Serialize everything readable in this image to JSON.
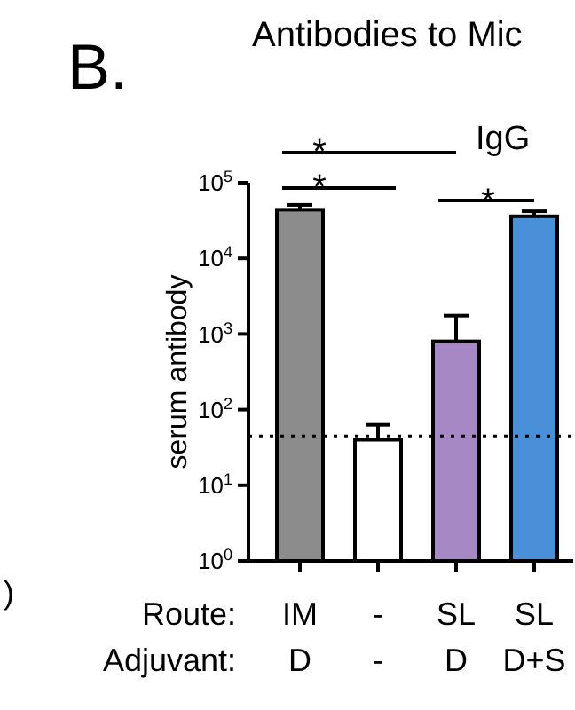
{
  "chart_data": {
    "type": "bar",
    "title": "Antibodies to Mic",
    "subtitle": "IgG",
    "ylabel": "serum antibody",
    "categories": [
      "IM\nD",
      "-\n-",
      "SL\nD",
      "SL\nD+S"
    ],
    "values": [
      44000,
      40,
      800,
      36000
    ],
    "errors": [
      [
        44000,
        51000
      ],
      [
        40,
        63
      ],
      [
        800,
        1750
      ],
      [
        36000,
        42000
      ]
    ],
    "colors": [
      "#8c8c8c",
      "#ffffff",
      "#a688c4",
      "#4a90d9"
    ],
    "log": true,
    "ylim": [
      1,
      100000
    ],
    "yticks": [
      {
        "value": 1,
        "label": "10$^{0}$"
      },
      {
        "value": 10,
        "label": "10$^{1}$"
      },
      {
        "value": 100,
        "label": "10$^{2}$"
      },
      {
        "value": 1000,
        "label": "10$^{3}$"
      },
      {
        "value": 10000,
        "label": "10$^{4}$"
      },
      {
        "value": 100000,
        "label": "10$^{5}$"
      }
    ],
    "ref_lines": [
      {
        "axis": "y",
        "value": 45,
        "line_style": "dotted",
        "color": "#000000"
      }
    ],
    "annotations": [
      "B.",
      "*",
      "*",
      "*",
      "Route:",
      "Adjuvant:",
      ")"
    ]
  }
}
